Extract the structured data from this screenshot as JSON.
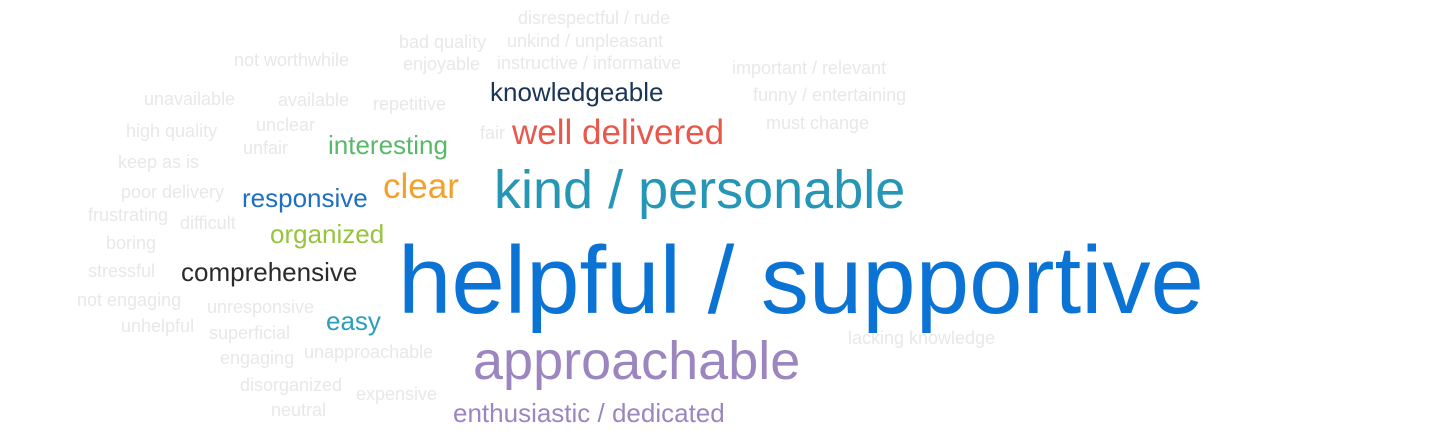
{
  "words": {
    "helpful": "helpful / supportive",
    "kind": "kind / personable",
    "approachable": "approachable",
    "well_delivered": "well delivered",
    "clear": "clear",
    "interesting": "interesting",
    "knowledgeable": "knowledgeable",
    "responsive": "responsive",
    "organized": "organized",
    "comprehensive": "comprehensive",
    "easy": "easy",
    "enthusiastic": "enthusiastic / dedicated",
    "disrespectful": "disrespectful / rude",
    "bad_quality": "bad quality",
    "unkind": "unkind / unpleasant",
    "not_worthwhile": "not worthwhile",
    "enjoyable": "enjoyable",
    "instructive": "instructive / informative",
    "important": "important / relevant",
    "unavailable": "unavailable",
    "available": "available",
    "repetitive": "repetitive",
    "funny": "funny / entertaining",
    "high_quality": "high quality",
    "unclear": "unclear",
    "fair": "fair",
    "must_change": "must change",
    "unfair": "unfair",
    "keep_as_is": "keep as is",
    "poor_delivery": "poor delivery",
    "frustrating": "frustrating",
    "difficult": "difficult",
    "boring": "boring",
    "stressful": "stressful",
    "not_engaging": "not engaging",
    "unresponsive": "unresponsive",
    "unhelpful": "unhelpful",
    "superficial": "superficial",
    "lacking_knowledge": "lacking knowledge",
    "engaging": "engaging",
    "unapproachable": "unapproachable",
    "disorganized": "disorganized",
    "expensive": "expensive",
    "neutral": "neutral"
  },
  "colors": {
    "faint": "#e8e8e8",
    "helpful": "#0b73d4",
    "kind": "#2596b5",
    "approachable": "#9b86c0",
    "well_delivered": "#e8584d",
    "clear": "#f2a12a",
    "interesting": "#59b86a",
    "knowledgeable": "#1b3555",
    "responsive": "#1f6fc0",
    "organized": "#97c43d",
    "comprehensive": "#2b2b2b",
    "easy": "#2a9fbd",
    "enthusiastic": "#9b86c0"
  }
}
